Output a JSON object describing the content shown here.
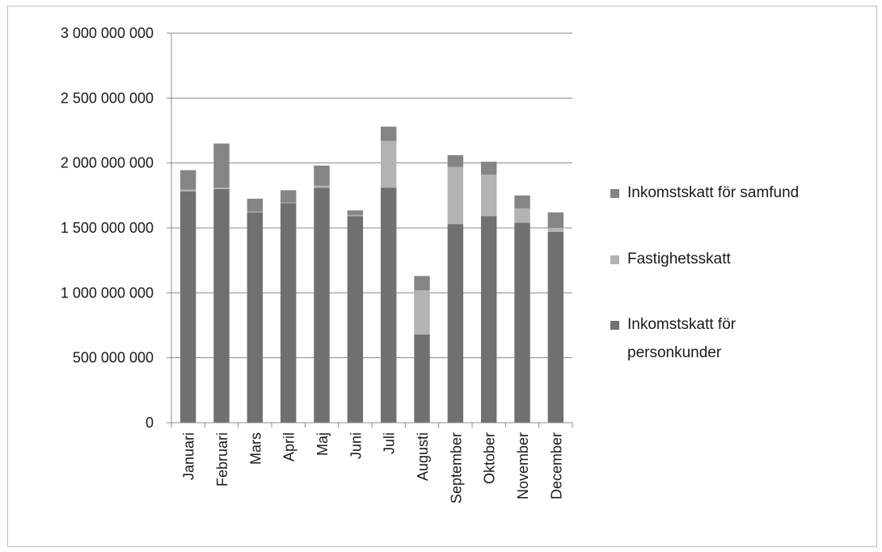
{
  "chart_data": {
    "type": "bar",
    "stacked": true,
    "title": "",
    "xlabel": "",
    "ylabel": "",
    "ylim": [
      0,
      3000000000
    ],
    "yticks": [
      {
        "value": 0,
        "label": "0"
      },
      {
        "value": 500000000,
        "label": "500 000 000"
      },
      {
        "value": 1000000000,
        "label": "1 000 000 000"
      },
      {
        "value": 1500000000,
        "label": "1 500 000 000"
      },
      {
        "value": 2000000000,
        "label": "2 000 000 000"
      },
      {
        "value": 2500000000,
        "label": "2 500 000 000"
      },
      {
        "value": 3000000000,
        "label": "3 000 000 000"
      }
    ],
    "grid": true,
    "legend_position": "right",
    "categories": [
      "Januari",
      "Februari",
      "Mars",
      "April",
      "Maj",
      "Juni",
      "Juli",
      "Augusti",
      "September",
      "Oktober",
      "November",
      "December"
    ],
    "series": [
      {
        "name": "Inkomstskatt för personkunder",
        "color": "#707070",
        "values": [
          1780000000,
          1800000000,
          1620000000,
          1690000000,
          1810000000,
          1590000000,
          1810000000,
          680000000,
          1530000000,
          1590000000,
          1540000000,
          1470000000
        ]
      },
      {
        "name": "Fastighetsskatt",
        "color": "#b3b3b3",
        "values": [
          15000000,
          10000000,
          5000000,
          5000000,
          15000000,
          10000000,
          360000000,
          340000000,
          440000000,
          320000000,
          110000000,
          30000000
        ]
      },
      {
        "name": "Inkomstskatt för samfund",
        "color": "#858585",
        "values": [
          150000000,
          340000000,
          100000000,
          95000000,
          155000000,
          35000000,
          110000000,
          110000000,
          90000000,
          100000000,
          100000000,
          120000000
        ]
      }
    ],
    "legend_order": [
      "Inkomstskatt för samfund",
      "Fastighetsskatt",
      "Inkomstskatt för personkunder"
    ],
    "legend_lines": {
      "Inkomstskatt för samfund": [
        "Inkomstskatt för samfund"
      ],
      "Fastighetsskatt": [
        "Fastighetsskatt"
      ],
      "Inkomstskatt för personkunder": [
        "Inkomstskatt för",
        "personkunder"
      ]
    }
  }
}
